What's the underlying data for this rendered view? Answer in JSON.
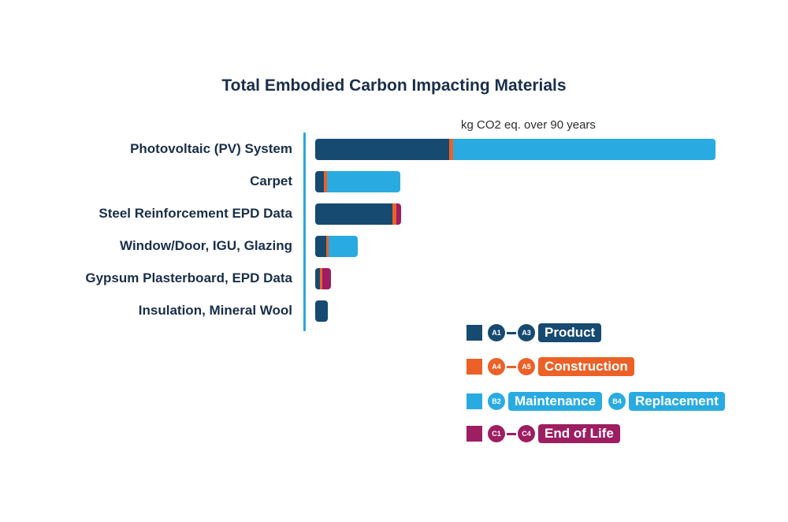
{
  "colors": {
    "product": "#174a70",
    "construction": "#ec6127",
    "maintenance": "#29abe2",
    "end_of_life": "#9e1e62"
  },
  "chart_data": {
    "type": "bar",
    "orientation": "horizontal",
    "stacked": true,
    "title": "Total Embodied Carbon Impacting Materials",
    "xlabel": "kg CO2 eq. over 90 years",
    "categories": [
      "Photovoltaic (PV) System",
      "Carpet",
      "Steel Reinforcement EPD Data",
      "Window/Door, IGU, Glazing",
      "Gypsum Plasterboard, EPD Data",
      "Insulation, Mineral Wool"
    ],
    "series": [
      {
        "name": "Product",
        "key": "product",
        "values": [
          170,
          11,
          98,
          14,
          6,
          16
        ]
      },
      {
        "name": "Construction",
        "key": "construction",
        "values": [
          5,
          4,
          5,
          3,
          3,
          0
        ]
      },
      {
        "name": "Maintenance / Replacement",
        "key": "maintenance",
        "values": [
          333,
          93,
          0,
          37,
          0,
          0
        ]
      },
      {
        "name": "End of Life",
        "key": "end_of_life",
        "values": [
          0,
          0,
          6,
          0,
          11,
          0
        ]
      }
    ],
    "xlim": [
      0,
      510
    ],
    "grid": false,
    "legend": "bottom-right"
  },
  "legend": [
    {
      "key": "product",
      "badges": [
        "A1",
        "A3"
      ],
      "labels": [
        "Product"
      ]
    },
    {
      "key": "construction",
      "badges": [
        "A4",
        "A5"
      ],
      "labels": [
        "Construction"
      ]
    },
    {
      "key": "maintenance",
      "badges": [
        "B2",
        "B4"
      ],
      "labels": [
        "Maintenance",
        "Replacement"
      ]
    },
    {
      "key": "end_of_life",
      "badges": [
        "C1",
        "C4"
      ],
      "labels": [
        "End of Life"
      ]
    }
  ]
}
